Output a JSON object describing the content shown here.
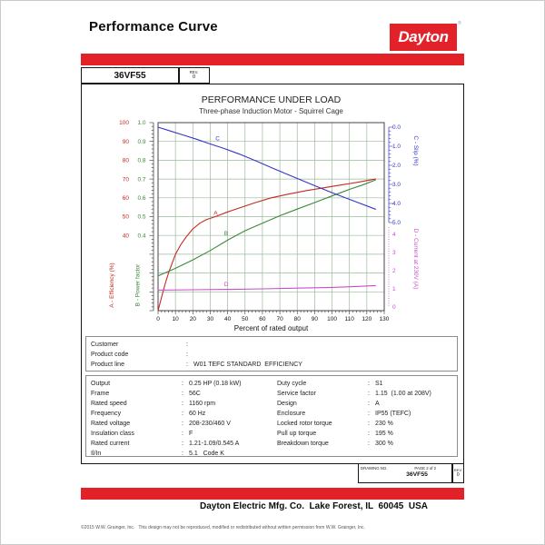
{
  "header": {
    "title": "Performance Curve",
    "brand": "Dayton",
    "brand_registered": "®",
    "brand_red": "#E32129"
  },
  "model_row": {
    "model": "36VF55",
    "rev_label": "REV.",
    "rev_value": "0"
  },
  "chart_data": {
    "type": "line",
    "title": "PERFORMANCE UNDER LOAD",
    "subtitle": "Three-phase Induction Motor - Squirrel Cage",
    "xlabel": "Percent of rated output",
    "xlim": [
      0,
      130
    ],
    "x_ticks": [
      0,
      10,
      20,
      30,
      40,
      50,
      60,
      70,
      80,
      90,
      100,
      110,
      120,
      130
    ],
    "grid": true,
    "grid_color": "#9CB89C",
    "axes": {
      "efficiency": {
        "label": "A - Efficiency (%)",
        "color": "#C42A21",
        "side": "left",
        "range": [
          0,
          100
        ],
        "ticks": [
          100,
          90,
          80,
          70,
          60,
          50,
          40
        ]
      },
      "power_factor": {
        "label": "B - Power factor",
        "color": "#3A8A3A",
        "side": "left",
        "range": [
          0,
          1
        ],
        "ticks": [
          "1.0",
          "0.9",
          "0.8",
          "0.7",
          "0.6",
          "0.5",
          "0.4"
        ]
      },
      "slip": {
        "label": "C - Slip (%)",
        "color": "#3535C8",
        "side": "right",
        "range": [
          0,
          5
        ],
        "ticks": [
          "0.0",
          "1.0",
          "2.0",
          "3.0",
          "4.0",
          "5.0"
        ]
      },
      "current": {
        "label": "D - Current at 230V (A)",
        "color": "#C94FC9",
        "side": "right",
        "range": [
          0,
          5
        ],
        "ticks": [
          4,
          3,
          2,
          1,
          0
        ]
      }
    },
    "series": [
      {
        "name": "A",
        "axis": "efficiency",
        "label_at": [
          32,
          51
        ],
        "points": [
          [
            0,
            0
          ],
          [
            2,
            7
          ],
          [
            4,
            14
          ],
          [
            6,
            20
          ],
          [
            8,
            25
          ],
          [
            10,
            30
          ],
          [
            13,
            35
          ],
          [
            16,
            39
          ],
          [
            20,
            43.5
          ],
          [
            24,
            46.5
          ],
          [
            28,
            48.5
          ],
          [
            33,
            50
          ],
          [
            40,
            52.5
          ],
          [
            48,
            55
          ],
          [
            56,
            57.5
          ],
          [
            65,
            60
          ],
          [
            75,
            62
          ],
          [
            85,
            63.8
          ],
          [
            95,
            65.3
          ],
          [
            105,
            66.8
          ],
          [
            115,
            68.3
          ],
          [
            125,
            70
          ]
        ]
      },
      {
        "name": "B",
        "axis": "power_factor",
        "label_at": [
          38,
          0.4
        ],
        "points": [
          [
            0,
            0.185
          ],
          [
            10,
            0.225
          ],
          [
            20,
            0.27
          ],
          [
            30,
            0.32
          ],
          [
            40,
            0.375
          ],
          [
            50,
            0.425
          ],
          [
            60,
            0.465
          ],
          [
            70,
            0.505
          ],
          [
            80,
            0.54
          ],
          [
            90,
            0.575
          ],
          [
            100,
            0.61
          ],
          [
            110,
            0.645
          ],
          [
            118,
            0.67
          ],
          [
            125,
            0.695
          ]
        ]
      },
      {
        "name": "C",
        "axis": "slip",
        "label_at": [
          33,
          0.7
        ],
        "points": [
          [
            0,
            0
          ],
          [
            7,
            0.2
          ],
          [
            14,
            0.4
          ],
          [
            22,
            0.63
          ],
          [
            30,
            0.88
          ],
          [
            38,
            1.12
          ],
          [
            47,
            1.42
          ],
          [
            57,
            1.8
          ],
          [
            66,
            2.15
          ],
          [
            75,
            2.5
          ],
          [
            87,
            2.95
          ],
          [
            99,
            3.4
          ],
          [
            112,
            3.85
          ],
          [
            125,
            4.3
          ]
        ]
      },
      {
        "name": "D",
        "axis": "current",
        "label_at": [
          38,
          1.15
        ],
        "points": [
          [
            0,
            0.93
          ],
          [
            20,
            0.95
          ],
          [
            40,
            0.97
          ],
          [
            60,
            1.0
          ],
          [
            80,
            1.04
          ],
          [
            100,
            1.08
          ],
          [
            112,
            1.12
          ],
          [
            125,
            1.18
          ]
        ]
      }
    ]
  },
  "customer_box": {
    "rows": [
      {
        "label": "Customer",
        "value": ""
      },
      {
        "label": "Product code",
        "value": ""
      },
      {
        "label": "Product line",
        "value": "W01 TEFC STANDARD  EFFICIENCY"
      }
    ]
  },
  "spec_box": {
    "left": [
      {
        "label": "Output",
        "value": "0.25 HP (0.18 kW)"
      },
      {
        "label": "Frame",
        "value": "56C"
      },
      {
        "label": "Rated speed",
        "value": "1160 rpm"
      },
      {
        "label": "Frequency",
        "value": "60 Hz"
      },
      {
        "label": "Rated voltage",
        "value": "208-230/460 V"
      },
      {
        "label": "Insulation class",
        "value": "F"
      },
      {
        "label": "Rated current",
        "value": "1.21-1.09/0.545 A"
      },
      {
        "label": "Il/In",
        "value": "5.1   Code K"
      }
    ],
    "right": [
      {
        "label": "Duty cycle",
        "value": "S1"
      },
      {
        "label": "Service factor",
        "value": "1.15  (1.00 at 208V)"
      },
      {
        "label": "Design",
        "value": "A"
      },
      {
        "label": "Enclosure",
        "value": "IP55 (TEFC)"
      },
      {
        "label": "Locked rotor torque",
        "value": "230 %"
      },
      {
        "label": "Pull up torque",
        "value": "195 %"
      },
      {
        "label": "Breakdown torque",
        "value": "300 %"
      }
    ]
  },
  "footer": {
    "drawing_no_label": "DRAWING NO.",
    "page_label": "PAGE 2 of 2",
    "drawing_no": "36VF55",
    "rev_label": "REV.",
    "rev_value": "0",
    "company_line": "Dayton Electric Mfg. Co.  Lake Forest, IL  60045  USA",
    "copyright": "©2015 W.W. Grainger, Inc.   This design may not be reproduced, modified or redistributed without written permission from W.W. Grainger, Inc."
  }
}
